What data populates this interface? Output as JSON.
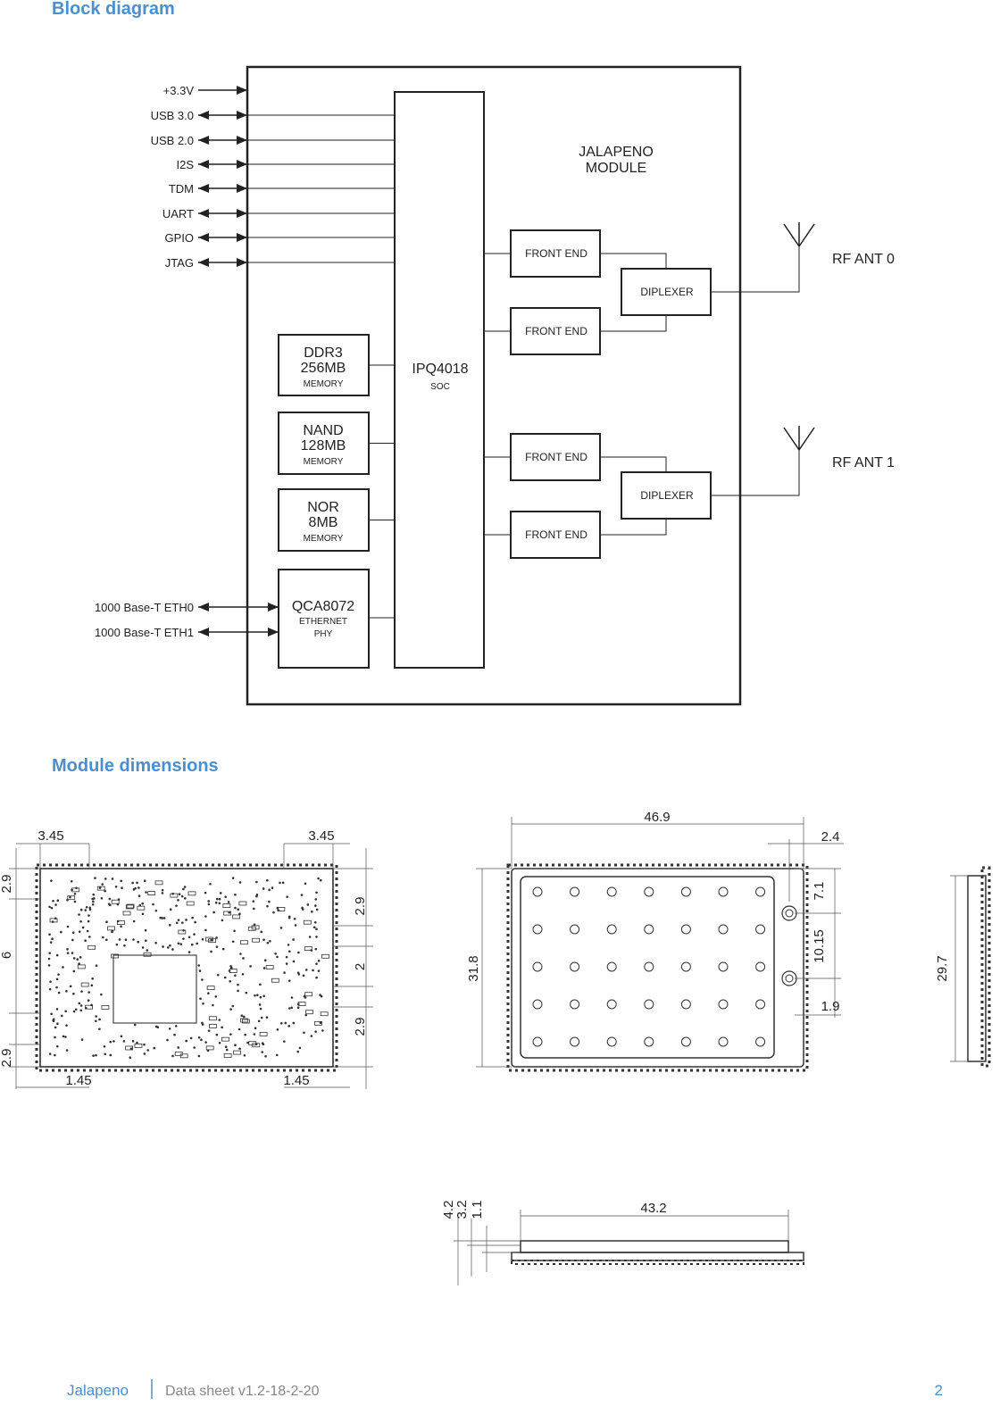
{
  "headings": {
    "block_diagram": "Block diagram",
    "module_dimensions": "Module dimensions"
  },
  "block_diagram": {
    "module_label": [
      "JALAPENO",
      "MODULE"
    ],
    "interfaces": [
      "+3.3V",
      "USB 3.0",
      "USB 2.0",
      "I2S",
      "TDM",
      "UART",
      "GPIO",
      "JTAG"
    ],
    "ethernet": [
      "1000 Base-T ETH0",
      "1000 Base-T ETH1"
    ],
    "soc": {
      "name": "IPQ4018",
      "sub": "SOC"
    },
    "memories": [
      {
        "name": [
          "DDR3",
          "256MB"
        ],
        "sub": "MEMORY"
      },
      {
        "name": [
          "NAND",
          "128MB"
        ],
        "sub": "MEMORY"
      },
      {
        "name": [
          "NOR",
          "8MB"
        ],
        "sub": "MEMORY"
      }
    ],
    "phy": {
      "name": "QCA8072",
      "sub": [
        "ETHERNET",
        "PHY"
      ]
    },
    "front_ends": [
      "FRONT END",
      "FRONT END",
      "FRONT END",
      "FRONT END"
    ],
    "diplexers": [
      "DIPLEXER",
      "DIPLEXER"
    ],
    "antennas": [
      "RF ANT 0",
      "RF ANT 1"
    ]
  },
  "dimensions": {
    "top_view": {
      "top": [
        "3.45",
        "3.45"
      ],
      "bottom": [
        "1.45",
        "1.45"
      ],
      "left": [
        "2.9",
        "6",
        "2.9"
      ],
      "right": [
        "2.9",
        "2",
        "2.9"
      ]
    },
    "shield_view": {
      "width": "46.9",
      "offset": "2.4",
      "height": "31.8",
      "right": [
        "7.1",
        "10.15",
        "1.9"
      ]
    },
    "side_view": {
      "height": "29.7"
    },
    "profile_view": {
      "length": "43.2",
      "heights": [
        "4.2",
        "3.2",
        "1.1"
      ]
    }
  },
  "footer": {
    "product": "Jalapeno",
    "document": "Data sheet v1.2-18-2-20",
    "page": "2"
  }
}
